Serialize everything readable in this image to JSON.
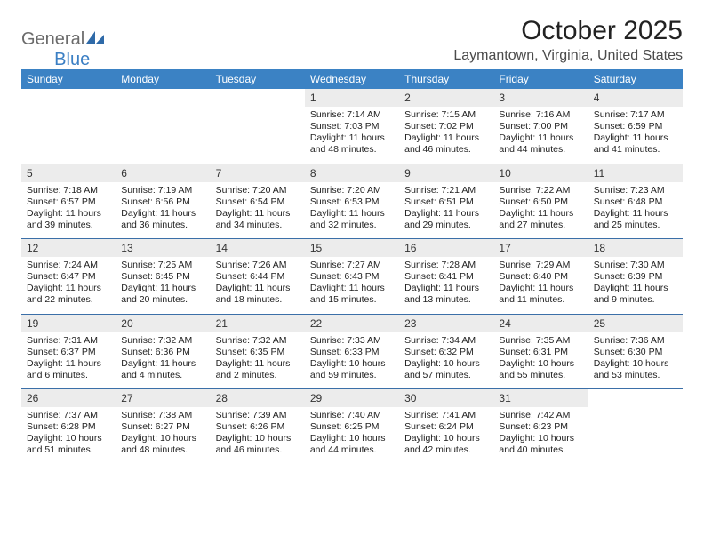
{
  "logo": {
    "word1": "General",
    "word2": "Blue"
  },
  "title": "October 2025",
  "location": "Laymantown, Virginia, United States",
  "colors": {
    "header_bg": "#3b82c4",
    "header_text": "#ffffff",
    "daynum_bg": "#ececec",
    "week_sep": "#3b6fa8",
    "logo_gray": "#6b6b6b",
    "logo_blue": "#3b7fc4"
  },
  "day_headers": [
    "Sunday",
    "Monday",
    "Tuesday",
    "Wednesday",
    "Thursday",
    "Friday",
    "Saturday"
  ],
  "weeks": [
    [
      {
        "n": "",
        "sunrise": "",
        "sunset": "",
        "daylight": ""
      },
      {
        "n": "",
        "sunrise": "",
        "sunset": "",
        "daylight": ""
      },
      {
        "n": "",
        "sunrise": "",
        "sunset": "",
        "daylight": ""
      },
      {
        "n": "1",
        "sunrise": "Sunrise: 7:14 AM",
        "sunset": "Sunset: 7:03 PM",
        "daylight": "Daylight: 11 hours and 48 minutes."
      },
      {
        "n": "2",
        "sunrise": "Sunrise: 7:15 AM",
        "sunset": "Sunset: 7:02 PM",
        "daylight": "Daylight: 11 hours and 46 minutes."
      },
      {
        "n": "3",
        "sunrise": "Sunrise: 7:16 AM",
        "sunset": "Sunset: 7:00 PM",
        "daylight": "Daylight: 11 hours and 44 minutes."
      },
      {
        "n": "4",
        "sunrise": "Sunrise: 7:17 AM",
        "sunset": "Sunset: 6:59 PM",
        "daylight": "Daylight: 11 hours and 41 minutes."
      }
    ],
    [
      {
        "n": "5",
        "sunrise": "Sunrise: 7:18 AM",
        "sunset": "Sunset: 6:57 PM",
        "daylight": "Daylight: 11 hours and 39 minutes."
      },
      {
        "n": "6",
        "sunrise": "Sunrise: 7:19 AM",
        "sunset": "Sunset: 6:56 PM",
        "daylight": "Daylight: 11 hours and 36 minutes."
      },
      {
        "n": "7",
        "sunrise": "Sunrise: 7:20 AM",
        "sunset": "Sunset: 6:54 PM",
        "daylight": "Daylight: 11 hours and 34 minutes."
      },
      {
        "n": "8",
        "sunrise": "Sunrise: 7:20 AM",
        "sunset": "Sunset: 6:53 PM",
        "daylight": "Daylight: 11 hours and 32 minutes."
      },
      {
        "n": "9",
        "sunrise": "Sunrise: 7:21 AM",
        "sunset": "Sunset: 6:51 PM",
        "daylight": "Daylight: 11 hours and 29 minutes."
      },
      {
        "n": "10",
        "sunrise": "Sunrise: 7:22 AM",
        "sunset": "Sunset: 6:50 PM",
        "daylight": "Daylight: 11 hours and 27 minutes."
      },
      {
        "n": "11",
        "sunrise": "Sunrise: 7:23 AM",
        "sunset": "Sunset: 6:48 PM",
        "daylight": "Daylight: 11 hours and 25 minutes."
      }
    ],
    [
      {
        "n": "12",
        "sunrise": "Sunrise: 7:24 AM",
        "sunset": "Sunset: 6:47 PM",
        "daylight": "Daylight: 11 hours and 22 minutes."
      },
      {
        "n": "13",
        "sunrise": "Sunrise: 7:25 AM",
        "sunset": "Sunset: 6:45 PM",
        "daylight": "Daylight: 11 hours and 20 minutes."
      },
      {
        "n": "14",
        "sunrise": "Sunrise: 7:26 AM",
        "sunset": "Sunset: 6:44 PM",
        "daylight": "Daylight: 11 hours and 18 minutes."
      },
      {
        "n": "15",
        "sunrise": "Sunrise: 7:27 AM",
        "sunset": "Sunset: 6:43 PM",
        "daylight": "Daylight: 11 hours and 15 minutes."
      },
      {
        "n": "16",
        "sunrise": "Sunrise: 7:28 AM",
        "sunset": "Sunset: 6:41 PM",
        "daylight": "Daylight: 11 hours and 13 minutes."
      },
      {
        "n": "17",
        "sunrise": "Sunrise: 7:29 AM",
        "sunset": "Sunset: 6:40 PM",
        "daylight": "Daylight: 11 hours and 11 minutes."
      },
      {
        "n": "18",
        "sunrise": "Sunrise: 7:30 AM",
        "sunset": "Sunset: 6:39 PM",
        "daylight": "Daylight: 11 hours and 9 minutes."
      }
    ],
    [
      {
        "n": "19",
        "sunrise": "Sunrise: 7:31 AM",
        "sunset": "Sunset: 6:37 PM",
        "daylight": "Daylight: 11 hours and 6 minutes."
      },
      {
        "n": "20",
        "sunrise": "Sunrise: 7:32 AM",
        "sunset": "Sunset: 6:36 PM",
        "daylight": "Daylight: 11 hours and 4 minutes."
      },
      {
        "n": "21",
        "sunrise": "Sunrise: 7:32 AM",
        "sunset": "Sunset: 6:35 PM",
        "daylight": "Daylight: 11 hours and 2 minutes."
      },
      {
        "n": "22",
        "sunrise": "Sunrise: 7:33 AM",
        "sunset": "Sunset: 6:33 PM",
        "daylight": "Daylight: 10 hours and 59 minutes."
      },
      {
        "n": "23",
        "sunrise": "Sunrise: 7:34 AM",
        "sunset": "Sunset: 6:32 PM",
        "daylight": "Daylight: 10 hours and 57 minutes."
      },
      {
        "n": "24",
        "sunrise": "Sunrise: 7:35 AM",
        "sunset": "Sunset: 6:31 PM",
        "daylight": "Daylight: 10 hours and 55 minutes."
      },
      {
        "n": "25",
        "sunrise": "Sunrise: 7:36 AM",
        "sunset": "Sunset: 6:30 PM",
        "daylight": "Daylight: 10 hours and 53 minutes."
      }
    ],
    [
      {
        "n": "26",
        "sunrise": "Sunrise: 7:37 AM",
        "sunset": "Sunset: 6:28 PM",
        "daylight": "Daylight: 10 hours and 51 minutes."
      },
      {
        "n": "27",
        "sunrise": "Sunrise: 7:38 AM",
        "sunset": "Sunset: 6:27 PM",
        "daylight": "Daylight: 10 hours and 48 minutes."
      },
      {
        "n": "28",
        "sunrise": "Sunrise: 7:39 AM",
        "sunset": "Sunset: 6:26 PM",
        "daylight": "Daylight: 10 hours and 46 minutes."
      },
      {
        "n": "29",
        "sunrise": "Sunrise: 7:40 AM",
        "sunset": "Sunset: 6:25 PM",
        "daylight": "Daylight: 10 hours and 44 minutes."
      },
      {
        "n": "30",
        "sunrise": "Sunrise: 7:41 AM",
        "sunset": "Sunset: 6:24 PM",
        "daylight": "Daylight: 10 hours and 42 minutes."
      },
      {
        "n": "31",
        "sunrise": "Sunrise: 7:42 AM",
        "sunset": "Sunset: 6:23 PM",
        "daylight": "Daylight: 10 hours and 40 minutes."
      },
      {
        "n": "",
        "sunrise": "",
        "sunset": "",
        "daylight": ""
      }
    ]
  ]
}
